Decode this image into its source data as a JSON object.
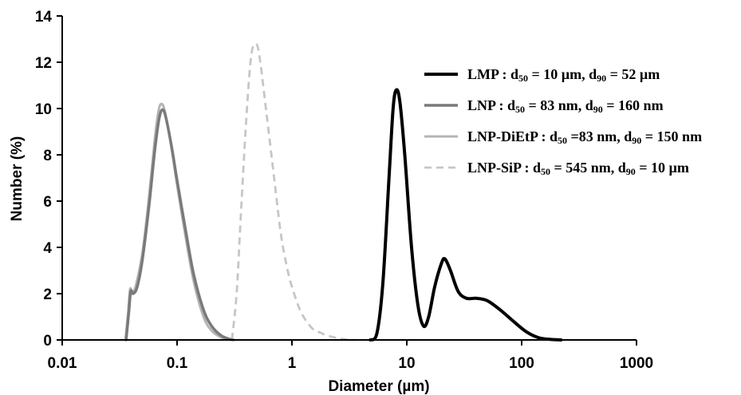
{
  "chart_data": {
    "type": "line",
    "title": "",
    "xlabel": "Diameter (µm)",
    "ylabel": "Number (%)",
    "xscale": "log",
    "xlim": [
      0.01,
      1000
    ],
    "ylim": [
      0,
      14
    ],
    "xticks": [
      {
        "value": 0.01,
        "label": "0.01"
      },
      {
        "value": 0.1,
        "label": "0.1"
      },
      {
        "value": 1,
        "label": "1"
      },
      {
        "value": 10,
        "label": "10"
      },
      {
        "value": 100,
        "label": "100"
      },
      {
        "value": 1000,
        "label": "1000"
      }
    ],
    "yticks": [
      {
        "value": 0,
        "label": "0"
      },
      {
        "value": 2,
        "label": "2"
      },
      {
        "value": 4,
        "label": "4"
      },
      {
        "value": 6,
        "label": "6"
      },
      {
        "value": 8,
        "label": "8"
      },
      {
        "value": 10,
        "label": "10"
      },
      {
        "value": 12,
        "label": "12"
      },
      {
        "value": 14,
        "label": "14"
      }
    ],
    "grid": false,
    "legend_position": "top-right",
    "series": [
      {
        "name": "LMP",
        "legend": {
          "prefix": "LMP : d",
          "sub1": "50",
          "mid": " = 10 µm, d",
          "sub2": "90",
          "suffix": " = 52 µm"
        },
        "color": "#000000",
        "style": "solid",
        "points": [
          [
            4.8,
            0
          ],
          [
            5.5,
            0.3
          ],
          [
            6.2,
            2.5
          ],
          [
            7.0,
            7.0
          ],
          [
            7.6,
            10.0
          ],
          [
            8.1,
            10.8
          ],
          [
            8.7,
            10.3
          ],
          [
            9.6,
            8.0
          ],
          [
            11.0,
            4.0
          ],
          [
            12.5,
            1.5
          ],
          [
            14.0,
            0.6
          ],
          [
            15.5,
            1.0
          ],
          [
            17.5,
            2.3
          ],
          [
            20.0,
            3.3
          ],
          [
            21.5,
            3.5
          ],
          [
            24.0,
            3.0
          ],
          [
            28.0,
            2.1
          ],
          [
            33.0,
            1.8
          ],
          [
            40.0,
            1.8
          ],
          [
            50.0,
            1.7
          ],
          [
            65.0,
            1.3
          ],
          [
            85.0,
            0.8
          ],
          [
            110.0,
            0.35
          ],
          [
            140.0,
            0.1
          ],
          [
            180.0,
            0.02
          ],
          [
            220.0,
            0
          ]
        ]
      },
      {
        "name": "LNP",
        "legend": {
          "prefix": "LNP : d",
          "sub1": "50",
          "mid": " = 83 nm, d",
          "sub2": "90",
          "suffix": " = 160 nm"
        },
        "color": "#7a7a7a",
        "style": "solid",
        "points": [
          [
            0.036,
            0
          ],
          [
            0.038,
            1.2
          ],
          [
            0.0395,
            2.1
          ],
          [
            0.0415,
            2.0
          ],
          [
            0.045,
            2.3
          ],
          [
            0.05,
            3.5
          ],
          [
            0.057,
            5.8
          ],
          [
            0.064,
            8.2
          ],
          [
            0.07,
            9.6
          ],
          [
            0.075,
            9.95
          ],
          [
            0.08,
            9.6
          ],
          [
            0.09,
            8.3
          ],
          [
            0.1,
            6.9
          ],
          [
            0.12,
            4.6
          ],
          [
            0.14,
            2.8
          ],
          [
            0.17,
            1.3
          ],
          [
            0.2,
            0.6
          ],
          [
            0.24,
            0.2
          ],
          [
            0.28,
            0.05
          ],
          [
            0.31,
            0
          ]
        ]
      },
      {
        "name": "LNP-DiEtP",
        "legend": {
          "prefix": "LNP-DiEtP : d",
          "sub1": "50",
          "mid": " =83 nm, d",
          "sub2": "90",
          "suffix": " = 150 nm"
        },
        "color": "#b4b4b4",
        "style": "solid",
        "points": [
          [
            0.0355,
            0
          ],
          [
            0.0375,
            1.2
          ],
          [
            0.039,
            2.2
          ],
          [
            0.041,
            2.05
          ],
          [
            0.044,
            2.4
          ],
          [
            0.05,
            3.8
          ],
          [
            0.057,
            6.2
          ],
          [
            0.064,
            8.7
          ],
          [
            0.069,
            9.9
          ],
          [
            0.073,
            10.2
          ],
          [
            0.078,
            9.9
          ],
          [
            0.088,
            8.5
          ],
          [
            0.1,
            6.7
          ],
          [
            0.12,
            4.3
          ],
          [
            0.14,
            2.5
          ],
          [
            0.17,
            1.0
          ],
          [
            0.2,
            0.4
          ],
          [
            0.24,
            0.12
          ],
          [
            0.28,
            0.02
          ],
          [
            0.3,
            0
          ]
        ]
      },
      {
        "name": "LNP-SiP",
        "legend": {
          "prefix": "LNP-SiP : d",
          "sub1": "50",
          "mid": " = 545 nm, d",
          "sub2": "90",
          "suffix": " = 10 µm"
        },
        "color": "#c6c6c6",
        "style": "dashed",
        "points": [
          [
            0.3,
            0
          ],
          [
            0.33,
            2.0
          ],
          [
            0.36,
            5.5
          ],
          [
            0.4,
            9.5
          ],
          [
            0.44,
            12.2
          ],
          [
            0.48,
            12.8
          ],
          [
            0.52,
            12.3
          ],
          [
            0.6,
            9.8
          ],
          [
            0.7,
            7.0
          ],
          [
            0.8,
            4.6
          ],
          [
            0.9,
            3.2
          ],
          [
            1.0,
            2.3
          ],
          [
            1.2,
            1.2
          ],
          [
            1.5,
            0.5
          ],
          [
            1.8,
            0.3
          ],
          [
            2.0,
            0.2
          ],
          [
            2.5,
            0.08
          ],
          [
            3.0,
            0.02
          ],
          [
            3.5,
            0
          ]
        ]
      }
    ]
  }
}
